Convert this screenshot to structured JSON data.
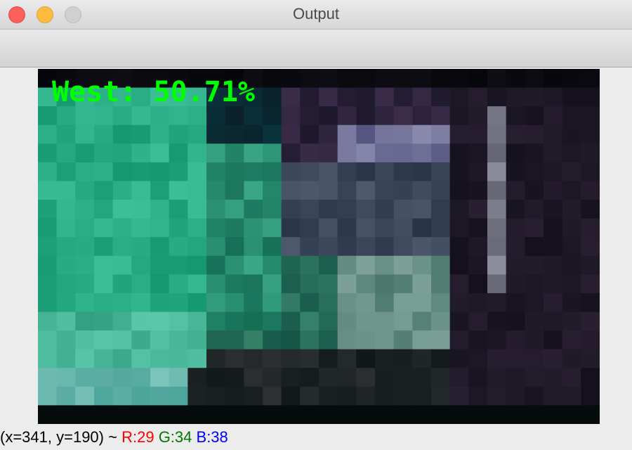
{
  "window": {
    "title": "Output"
  },
  "image": {
    "overlay_text": "West: 50.71%",
    "overlay_color": "#00ff00"
  },
  "status": {
    "coords": "(x=341, y=190) ~",
    "r": "R:29",
    "g": "G:34",
    "b": "B:38",
    "r_color": "#ff0000",
    "g_color": "#007a00",
    "b_color": "#0000ff"
  },
  "icons": [
    "close-button",
    "minimize-button",
    "maximize-button"
  ]
}
